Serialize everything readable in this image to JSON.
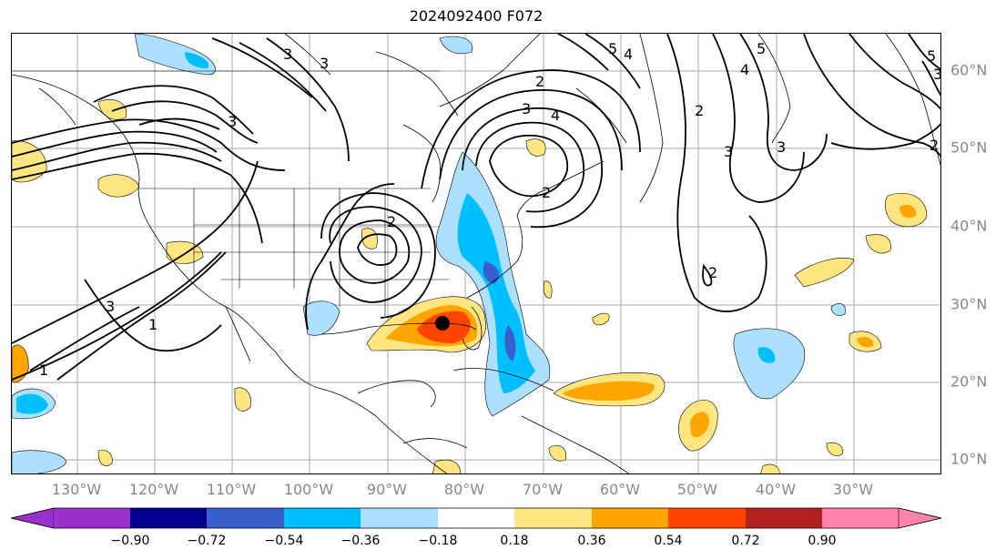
{
  "title": "2024092400 F072",
  "lon_ticks": [
    "130°W",
    "120°W",
    "110°W",
    "100°W",
    "90°W",
    "80°W",
    "70°W",
    "60°W",
    "50°W",
    "40°W",
    "30°W"
  ],
  "lat_ticks": [
    "60°N",
    "50°N",
    "40°N",
    "30°N",
    "20°N",
    "10°N"
  ],
  "colorbar": {
    "levels": [
      "−0.90",
      "−0.72",
      "−0.54",
      "−0.36",
      "−0.18",
      "0.18",
      "0.36",
      "0.54",
      "0.72",
      "0.90"
    ],
    "colors": [
      "#9932CC",
      "#00008B",
      "#3A5FCD",
      "#00BFFF",
      "#ADDFFF",
      "#FFFFFF",
      "#FFE680",
      "#FFA500",
      "#FF4500",
      "#B22222",
      "#FF82AB"
    ]
  },
  "contour_labels": [
    "3",
    "3",
    "3",
    "3",
    "2",
    "4",
    "5",
    "5",
    "4",
    "3",
    "2",
    "2",
    "1",
    "1",
    "3",
    "2",
    "3",
    "2",
    "3",
    "2",
    "5",
    "4"
  ],
  "storm_marker": {
    "name": "storm-center"
  }
}
